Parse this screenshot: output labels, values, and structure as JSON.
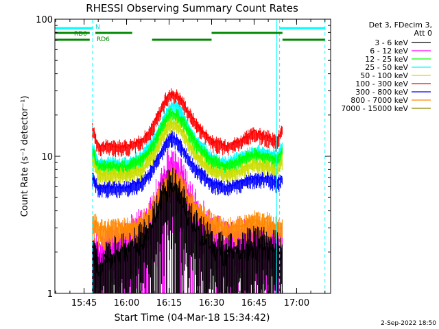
{
  "footer": {
    "timestamp": "2-Sep-2022 18:50"
  },
  "chart_data": {
    "type": "line",
    "title": "RHESSI Observing Summary Count Rates",
    "xlabel": "Start Time (04-Mar-18 15:34:42)",
    "ylabel": "Count Rate (s⁻¹ detector⁻¹)",
    "y_scale": "log",
    "ylim": [
      1,
      100
    ],
    "xlim": [
      "15:34:42",
      "17:12:00"
    ],
    "x_ticks": [
      "15:45",
      "16:00",
      "16:15",
      "16:30",
      "16:45",
      "17:00"
    ],
    "y_ticks": [
      "1",
      "10",
      "100"
    ],
    "legend": {
      "header": [
        "Det 3, FDecim 3,",
        "Att 0"
      ],
      "position": "right",
      "entries": [
        {
          "label": "3 - 6 keV",
          "color": "#000000"
        },
        {
          "label": "6 - 12 keV",
          "color": "#ff00ff"
        },
        {
          "label": "12 - 25 keV",
          "color": "#00ff00"
        },
        {
          "label": "25 - 50 keV",
          "color": "#00ffff"
        },
        {
          "label": "50 - 100 keV",
          "color": "#ccdd00"
        },
        {
          "label": "100 - 300 keV",
          "color": "#ff0000"
        },
        {
          "label": "300 - 800 keV",
          "color": "#0000ff"
        },
        {
          "label": "800 - 7000 keV",
          "color": "#ff8800"
        },
        {
          "label": "7000 - 15000 keV",
          "color": "#888800"
        }
      ]
    },
    "series": [
      {
        "energy_band": "100 - 300 keV",
        "color": "#ff0000",
        "x": [
          "15:48",
          "15:50",
          "15:55",
          "16:00",
          "16:05",
          "16:08",
          "16:10",
          "16:12",
          "16:14",
          "16:16",
          "16:18",
          "16:20",
          "16:22",
          "16:25",
          "16:30",
          "16:35",
          "16:40",
          "16:45",
          "16:50",
          "16:53",
          "16:55"
        ],
        "values": [
          16,
          12,
          12,
          12,
          13,
          15,
          18,
          22,
          27,
          29,
          28,
          25,
          21,
          17,
          13,
          12,
          13,
          15,
          14,
          13,
          16
        ]
      },
      {
        "energy_band": "25 - 50 keV",
        "color": "#00ffff",
        "x": [
          "15:48",
          "15:50",
          "15:55",
          "16:00",
          "16:05",
          "16:08",
          "16:10",
          "16:12",
          "16:14",
          "16:16",
          "16:18",
          "16:20",
          "16:22",
          "16:25",
          "16:30",
          "16:35",
          "16:40",
          "16:45",
          "16:50",
          "16:53",
          "16:55"
        ],
        "values": [
          12,
          9,
          9,
          9,
          10,
          12,
          14,
          17,
          21,
          24,
          23,
          20,
          16,
          13,
          10,
          9,
          10,
          11,
          11,
          10,
          12
        ]
      },
      {
        "energy_band": "12 - 25 keV",
        "color": "#00ff00",
        "x": [
          "15:48",
          "15:50",
          "15:55",
          "16:00",
          "16:05",
          "16:08",
          "16:10",
          "16:12",
          "16:14",
          "16:16",
          "16:18",
          "16:20",
          "16:22",
          "16:25",
          "16:30",
          "16:35",
          "16:40",
          "16:45",
          "16:50",
          "16:53",
          "16:55"
        ],
        "values": [
          11,
          8.5,
          8.5,
          8.5,
          9.5,
          11,
          13,
          16,
          19,
          21,
          20,
          18,
          15,
          12,
          9.5,
          8.5,
          9.5,
          10.5,
          10,
          9.5,
          11
        ]
      },
      {
        "energy_band": "50 - 100 keV",
        "color": "#ccdd00",
        "x": [
          "15:48",
          "15:50",
          "15:55",
          "16:00",
          "16:05",
          "16:08",
          "16:10",
          "16:12",
          "16:14",
          "16:16",
          "16:18",
          "16:20",
          "16:22",
          "16:25",
          "16:30",
          "16:35",
          "16:40",
          "16:45",
          "16:50",
          "16:53",
          "16:55"
        ],
        "values": [
          9.5,
          7.5,
          7.5,
          7.5,
          8,
          9.5,
          11,
          13.5,
          16,
          18,
          17,
          15,
          12.5,
          10,
          8,
          7.5,
          8,
          9,
          8.5,
          8,
          9.5
        ]
      },
      {
        "energy_band": "300 - 800 keV",
        "color": "#0000ff",
        "x": [
          "15:48",
          "15:50",
          "15:55",
          "16:00",
          "16:05",
          "16:08",
          "16:10",
          "16:12",
          "16:14",
          "16:16",
          "16:18",
          "16:20",
          "16:22",
          "16:25",
          "16:30",
          "16:35",
          "16:40",
          "16:45",
          "16:50",
          "16:53",
          "16:55"
        ],
        "values": [
          7,
          6,
          6,
          6,
          6.5,
          7.5,
          9,
          10.5,
          13,
          14,
          13,
          11.5,
          9.5,
          8,
          6.5,
          6,
          6.5,
          7,
          7,
          6.5,
          7
        ]
      },
      {
        "energy_band": "6 - 12 keV",
        "color": "#ff00ff",
        "x": [
          "15:48",
          "15:50",
          "15:55",
          "16:00",
          "16:05",
          "16:08",
          "16:10",
          "16:12",
          "16:14",
          "16:16",
          "16:18",
          "16:20",
          "16:22",
          "16:25",
          "16:30",
          "16:35",
          "16:40",
          "16:45",
          "16:50",
          "16:53",
          "16:55"
        ],
        "values": [
          2.2,
          2,
          2.2,
          2.5,
          3,
          3.5,
          4.5,
          6,
          7.5,
          8.5,
          8,
          6.5,
          5,
          3.8,
          2.8,
          2.4,
          2.5,
          2.6,
          2.5,
          2.4,
          2.3
        ]
      },
      {
        "energy_band": "800 - 7000 keV",
        "color": "#ff8800",
        "x": [
          "15:48",
          "15:50",
          "15:55",
          "16:00",
          "16:05",
          "16:08",
          "16:10",
          "16:12",
          "16:14",
          "16:16",
          "16:18",
          "16:20",
          "16:22",
          "16:25",
          "16:30",
          "16:35",
          "16:40",
          "16:45",
          "16:50",
          "16:53",
          "16:55"
        ],
        "values": [
          3.5,
          3,
          3,
          3,
          3.3,
          3.8,
          4.5,
          5.5,
          6.5,
          7.5,
          7,
          6,
          5,
          4,
          3.3,
          3,
          3.1,
          3.4,
          3.3,
          3.1,
          3.2
        ]
      },
      {
        "energy_band": "3 - 6 keV",
        "color": "#000000",
        "x": [
          "15:48",
          "15:50",
          "15:55",
          "16:00",
          "16:05",
          "16:08",
          "16:10",
          "16:12",
          "16:14",
          "16:16",
          "16:18",
          "16:20",
          "16:22",
          "16:25",
          "16:30",
          "16:35",
          "16:40",
          "16:45",
          "16:50",
          "16:53",
          "16:55"
        ],
        "values": [
          2,
          1.6,
          1.8,
          2,
          2.3,
          2.8,
          3.5,
          4.5,
          5.5,
          6,
          5.5,
          4.5,
          3.5,
          2.8,
          2.2,
          1.9,
          2,
          2.2,
          2.1,
          2,
          1.9
        ]
      }
    ],
    "flags": {
      "cyan_dashed_vlines": [
        "15:48",
        "16:54",
        "17:10"
      ],
      "cyan_solid_vlines": [
        "15:34:42",
        "16:53"
      ],
      "cyan_bars": [
        {
          "label": "N",
          "level": 1,
          "segments": [
            [
              "15:34:42",
              "15:48"
            ],
            [
              "16:54",
              "17:10"
            ]
          ]
        }
      ],
      "green_bars": [
        {
          "label": "RD0",
          "level": 2,
          "segments": [
            [
              "15:34:42",
              "15:47"
            ],
            [
              "15:49",
              "16:02"
            ],
            [
              "16:30",
              "16:55"
            ]
          ]
        },
        {
          "label": "RD6",
          "level": 3,
          "segments": [
            [
              "15:34:42",
              "15:47"
            ],
            [
              "16:09",
              "16:30"
            ],
            [
              "16:55",
              "17:10"
            ]
          ]
        }
      ]
    }
  }
}
